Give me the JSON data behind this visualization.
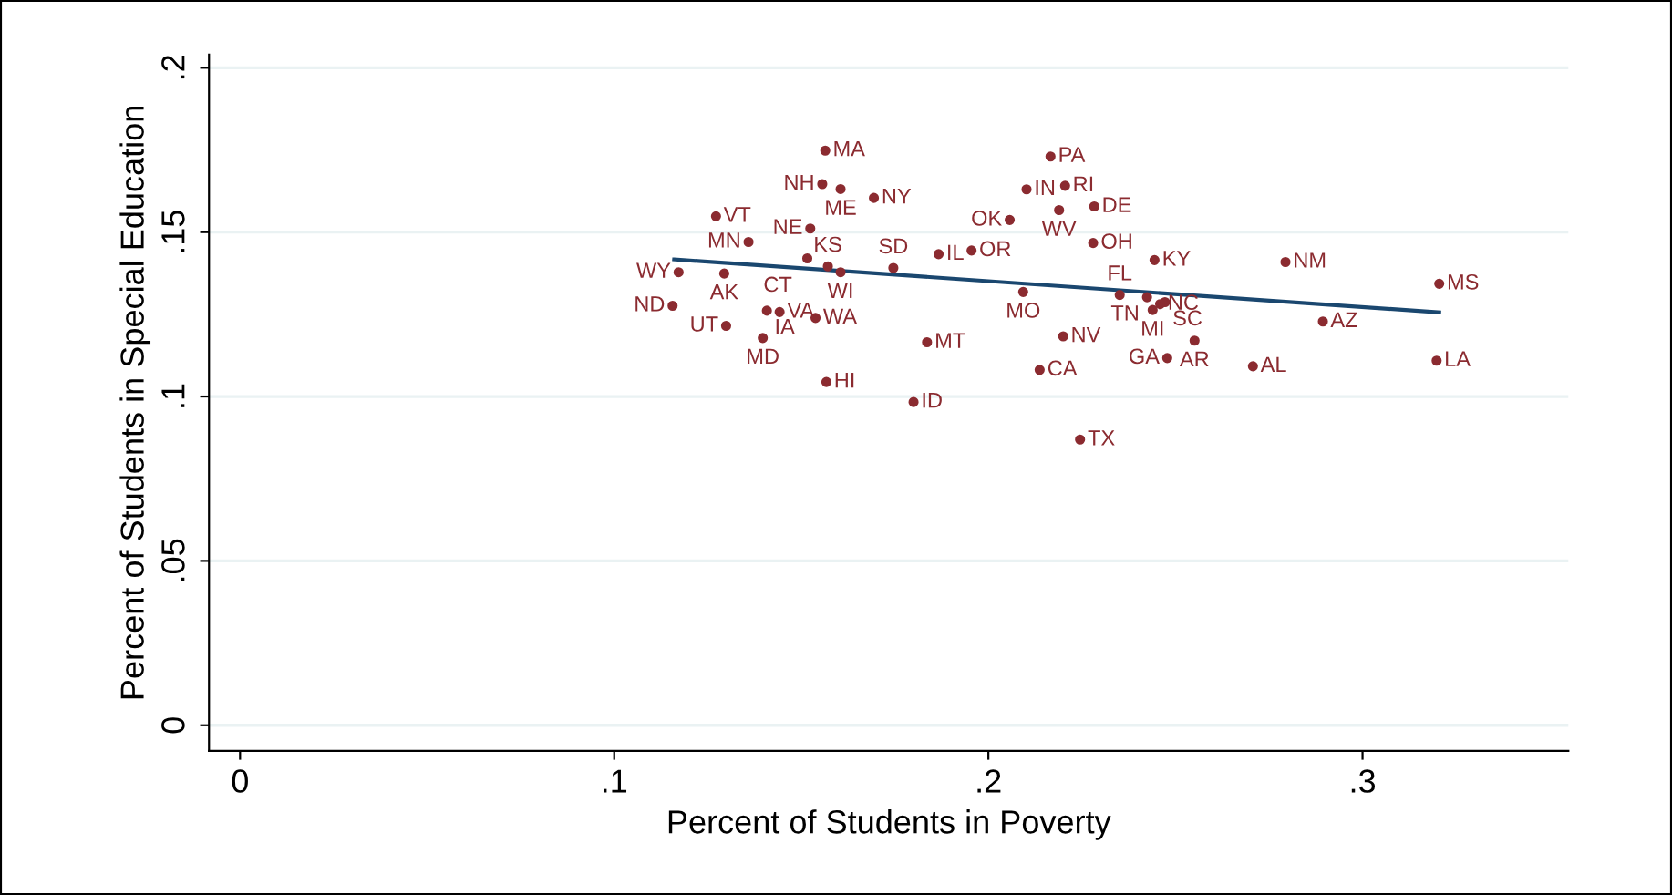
{
  "chart_data": {
    "type": "scatter",
    "xlabel": "Percent of Students in Poverty",
    "ylabel": "Percent of Students in Special Education",
    "xlim": [
      -0.0083,
      0.355
    ],
    "ylim": [
      -0.0078,
      0.204
    ],
    "xticks": [
      {
        "value": 0,
        "label": "0"
      },
      {
        "value": 0.1,
        "label": ".1"
      },
      {
        "value": 0.2,
        "label": ".2"
      },
      {
        "value": 0.3,
        "label": ".3"
      }
    ],
    "yticks": [
      {
        "value": 0,
        "label": "0"
      },
      {
        "value": 0.05,
        "label": ".05"
      },
      {
        "value": 0.1,
        "label": ".1"
      },
      {
        "value": 0.15,
        "label": ".15"
      },
      {
        "value": 0.2,
        "label": ".2"
      }
    ],
    "grid": "y",
    "legend": false,
    "marker": "circle",
    "series": [
      {
        "color": "#8b2b30",
        "x": [
          0.1564,
          0.1556,
          0.1605,
          0.1694,
          0.1272,
          0.1524,
          0.1359,
          0.1516,
          0.1571,
          0.1605,
          0.1746,
          0.1867,
          0.1955,
          0.1172,
          0.1294,
          0.1156,
          0.1408,
          0.1442,
          0.1538,
          0.1299,
          0.1397,
          0.1836,
          0.1567,
          0.18,
          0.2166,
          0.2102,
          0.2205,
          0.2189,
          0.2283,
          0.2057,
          0.228,
          0.2444,
          0.2794,
          0.2093,
          0.2351,
          0.2424,
          0.2472,
          0.2459,
          0.2439,
          0.22,
          0.2551,
          0.2478,
          0.2137,
          0.2707,
          0.2245,
          0.2894,
          0.3205,
          0.3198
        ],
        "values": [
          0.1748,
          0.1646,
          0.1631,
          0.1604,
          0.1548,
          0.1511,
          0.147,
          0.142,
          0.1396,
          0.1378,
          0.1391,
          0.1433,
          0.1444,
          0.1378,
          0.1374,
          0.1276,
          0.1261,
          0.1257,
          0.1239,
          0.1215,
          0.1178,
          0.1165,
          0.1044,
          0.0983,
          0.173,
          0.163,
          0.1641,
          0.1567,
          0.1578,
          0.1537,
          0.1467,
          0.1415,
          0.1409,
          0.1318,
          0.1309,
          0.1302,
          0.1287,
          0.1281,
          0.1263,
          0.1183,
          0.117,
          0.1117,
          0.1081,
          0.1092,
          0.0869,
          0.1228,
          0.1343,
          0.1109
        ]
      },
      {
        "type": "line",
        "marker": "none",
        "color": "#1a476f",
        "x": [
          0.116,
          0.3205
        ],
        "values": [
          0.1417,
          0.1256
        ]
      }
    ],
    "annotations": [
      {
        "text": "MA",
        "x": 0.1564,
        "y": 0.1748
      },
      {
        "text": "NH",
        "x": 0.1556,
        "y": 0.1646
      },
      {
        "text": "ME",
        "x": 0.1605,
        "y": 0.1631
      },
      {
        "text": "NY",
        "x": 0.1694,
        "y": 0.1604
      },
      {
        "text": "VT",
        "x": 0.1272,
        "y": 0.1548
      },
      {
        "text": "NE",
        "x": 0.1524,
        "y": 0.1511
      },
      {
        "text": "MN",
        "x": 0.1359,
        "y": 0.147
      },
      {
        "text": "CT",
        "x": 0.1516,
        "y": 0.142
      },
      {
        "text": "KS",
        "x": 0.1571,
        "y": 0.1396
      },
      {
        "text": "WI",
        "x": 0.1605,
        "y": 0.1378
      },
      {
        "text": "SD",
        "x": 0.1746,
        "y": 0.1391
      },
      {
        "text": "IL",
        "x": 0.1867,
        "y": 0.1433
      },
      {
        "text": "OR",
        "x": 0.1955,
        "y": 0.1444
      },
      {
        "text": "WY",
        "x": 0.1172,
        "y": 0.1378
      },
      {
        "text": "AK",
        "x": 0.1294,
        "y": 0.1374
      },
      {
        "text": "ND",
        "x": 0.1156,
        "y": 0.1276
      },
      {
        "text": "IA",
        "x": 0.1408,
        "y": 0.1261
      },
      {
        "text": "VA",
        "x": 0.1442,
        "y": 0.1257
      },
      {
        "text": "WA",
        "x": 0.1538,
        "y": 0.1239
      },
      {
        "text": "UT",
        "x": 0.1299,
        "y": 0.1215
      },
      {
        "text": "MD",
        "x": 0.1397,
        "y": 0.1178
      },
      {
        "text": "MT",
        "x": 0.1836,
        "y": 0.1165
      },
      {
        "text": "HI",
        "x": 0.1567,
        "y": 0.1044
      },
      {
        "text": "ID",
        "x": 0.18,
        "y": 0.0983
      },
      {
        "text": "PA",
        "x": 0.2166,
        "y": 0.173
      },
      {
        "text": "IN",
        "x": 0.2102,
        "y": 0.163
      },
      {
        "text": "RI",
        "x": 0.2205,
        "y": 0.1641
      },
      {
        "text": "WV",
        "x": 0.2189,
        "y": 0.1567
      },
      {
        "text": "DE",
        "x": 0.2283,
        "y": 0.1578
      },
      {
        "text": "OK",
        "x": 0.2057,
        "y": 0.1537
      },
      {
        "text": "OH",
        "x": 0.228,
        "y": 0.1467
      },
      {
        "text": "KY",
        "x": 0.2444,
        "y": 0.1415
      },
      {
        "text": "NM",
        "x": 0.2794,
        "y": 0.1409
      },
      {
        "text": "MO",
        "x": 0.2093,
        "y": 0.1318
      },
      {
        "text": "FL",
        "x": 0.2351,
        "y": 0.1309
      },
      {
        "text": "TN",
        "x": 0.2424,
        "y": 0.1302
      },
      {
        "text": "SC",
        "x": 0.2472,
        "y": 0.1287
      },
      {
        "text": "NC",
        "x": 0.2459,
        "y": 0.1281
      },
      {
        "text": "MI",
        "x": 0.2439,
        "y": 0.1263
      },
      {
        "text": "NV",
        "x": 0.22,
        "y": 0.1183
      },
      {
        "text": "AR",
        "x": 0.2551,
        "y": 0.117
      },
      {
        "text": "GA",
        "x": 0.2478,
        "y": 0.1117
      },
      {
        "text": "CA",
        "x": 0.2137,
        "y": 0.1081
      },
      {
        "text": "AL",
        "x": 0.2707,
        "y": 0.1092
      },
      {
        "text": "TX",
        "x": 0.2245,
        "y": 0.0869
      },
      {
        "text": "AZ",
        "x": 0.2894,
        "y": 0.1228
      },
      {
        "text": "MS",
        "x": 0.3205,
        "y": 0.1343
      },
      {
        "text": "LA",
        "x": 0.3198,
        "y": 0.1109
      }
    ]
  }
}
